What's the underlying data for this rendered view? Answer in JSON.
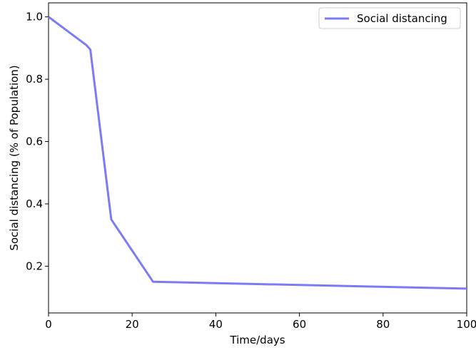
{
  "chart_data": {
    "type": "line",
    "title": "",
    "xlabel": "Time/days",
    "ylabel": "Social distancing (% of Population)",
    "xlim": [
      0,
      100
    ],
    "ylim": [
      0.05,
      1.045
    ],
    "xticks": [
      0,
      20,
      40,
      60,
      80,
      100
    ],
    "xtick_labels": [
      "0",
      "20",
      "40",
      "60",
      "80",
      "100"
    ],
    "yticks": [
      0.2,
      0.4,
      0.6,
      0.8,
      1.0
    ],
    "ytick_labels": [
      "0.2",
      "0.4",
      "0.6",
      "0.8",
      "1.0"
    ],
    "grid": false,
    "legend_position": "top-right",
    "series": [
      {
        "name": "Social distancing",
        "color": "#7b7bf5",
        "x": [
          0,
          9,
          10,
          15,
          25,
          100
        ],
        "y": [
          1.0,
          0.91,
          0.895,
          0.35,
          0.15,
          0.128
        ]
      }
    ]
  }
}
